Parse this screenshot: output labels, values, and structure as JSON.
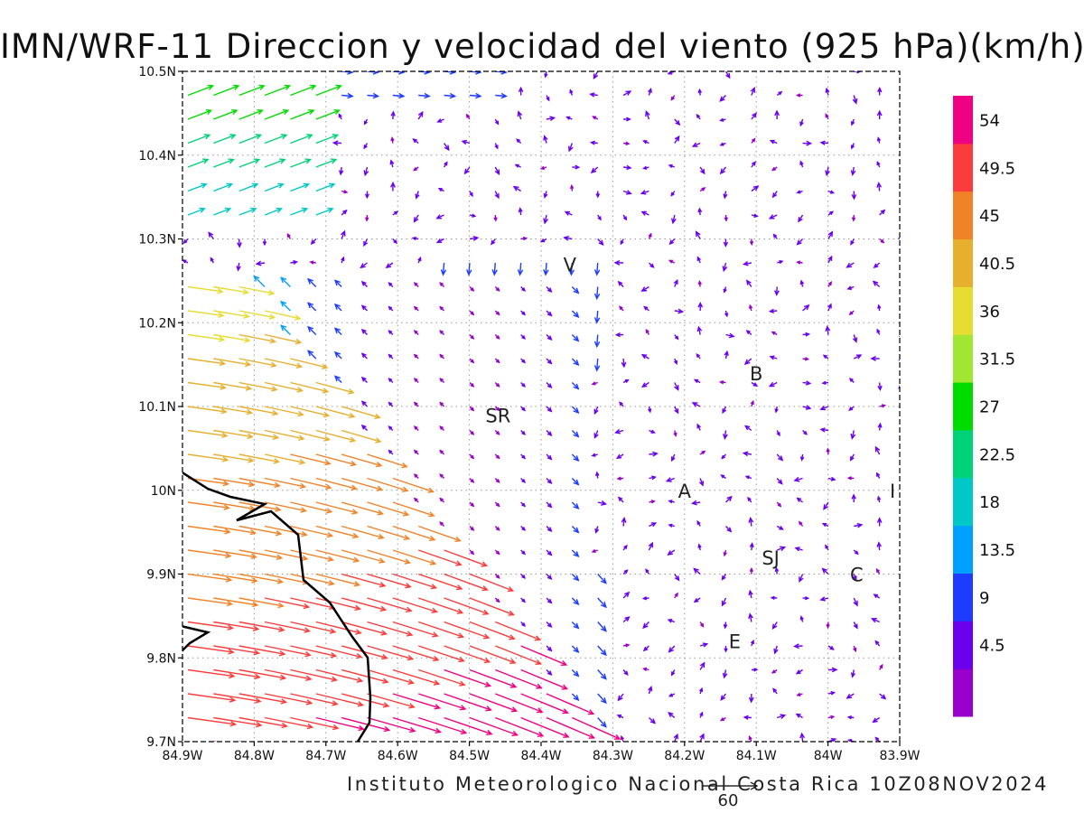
{
  "title": "IMN/WRF-11 Direccion y velocidad del viento (925 hPa)(km/h)",
  "credit": "Instituto Meteorologico Nacional Costa Rica 10Z08NOV2024",
  "chart_data": {
    "type": "vector-field",
    "variable": "wind direction and speed",
    "level": "925 hPa",
    "units": "km/h",
    "reference_vector": "60",
    "x_ticks": [
      "84.9W",
      "84.8W",
      "84.7W",
      "84.6W",
      "84.5W",
      "84.4W",
      "84.3W",
      "84.2W",
      "84.1W",
      "84W",
      "83.9W"
    ],
    "y_ticks": [
      "9.7N",
      "9.8N",
      "9.9N",
      "10N",
      "10.1N",
      "10.2N",
      "10.3N",
      "10.4N",
      "10.5N"
    ],
    "lon_range": [
      -84.9,
      -83.9
    ],
    "lat_range": [
      9.7,
      10.5
    ],
    "grid": "dotted",
    "place_labels": [
      {
        "text": "V",
        "lon": -84.36,
        "lat": 10.27
      },
      {
        "text": "B",
        "lon": -84.1,
        "lat": 10.14
      },
      {
        "text": "SR",
        "lon": -84.46,
        "lat": 10.09
      },
      {
        "text": "A",
        "lon": -84.2,
        "lat": 10.0
      },
      {
        "text": "I",
        "lon": -83.91,
        "lat": 10.0
      },
      {
        "text": "SJ",
        "lon": -84.08,
        "lat": 9.92
      },
      {
        "text": "C",
        "lon": -83.96,
        "lat": 9.9
      },
      {
        "text": "E",
        "lon": -84.13,
        "lat": 9.82
      }
    ],
    "colorbar": {
      "labels": [
        "4.5",
        "9",
        "13.5",
        "18",
        "22.5",
        "27",
        "31.5",
        "36",
        "40.5",
        "45",
        "49.5",
        "54"
      ],
      "colors": [
        "#9900cc",
        "#6a00ee",
        "#1e3cff",
        "#00a0ff",
        "#00c8c8",
        "#00d27a",
        "#00dc00",
        "#a0e632",
        "#e6dc32",
        "#e6af2d",
        "#f08228",
        "#fa3c3c",
        "#f00082"
      ]
    },
    "wind_regions": [
      {
        "area": "west coast lat 9.7-10.2",
        "direction": "east-southeast",
        "speed_range": [
          31.5,
          54
        ]
      },
      {
        "area": "northwest lat 10.3-10.5",
        "direction": "northeast to east",
        "speed_range": [
          18,
          36
        ]
      },
      {
        "area": "central and east",
        "direction": "variable",
        "speed_range": [
          0,
          13.5
        ]
      }
    ]
  }
}
